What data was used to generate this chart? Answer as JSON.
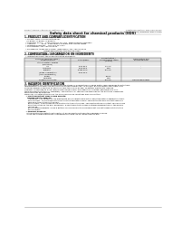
{
  "bg_color": "#ffffff",
  "header_left": "Product Name: Lithium Ion Battery Cell",
  "header_right": "Substance Control: SDS-SDS-00010\nEstablishment / Revision: Dec.7.2018",
  "title": "Safety data sheet for chemical products (SDS)",
  "section1_title": "1. PRODUCT AND COMPANY IDENTIFICATION",
  "section1_lines": [
    "  • Product name: Lithium Ion Battery Cell",
    "  • Product code: Cylindrical-type cell",
    "    (IY-B650J, IY-B660J, IY-B660A)",
    "  • Company name:    Sanyo Electric Co., Ltd.  Mobile Energy Company",
    "  • Address:          2001   Kamitanaka, Sumoto City, Hyogo, Japan",
    "  • Telephone number:   +81-799-26-4111",
    "  • Fax number: +81-799-26-4120",
    "  • Emergency telephone number (Weekdays) +81-799-26-2662",
    "                                  (Night and holiday) +81-799-26-4101"
  ],
  "section2_title": "2. COMPOSITION / INFORMATION ON INGREDIENTS",
  "section2_lines": [
    "  • Substance or preparation: Preparation",
    "  • Information about the chemical nature of product:"
  ],
  "table_headers": [
    "Common chemical name /",
    "CAS number",
    "Concentration /",
    "Classification and"
  ],
  "table_headers2": [
    "Chemical name",
    "",
    "Concentration range",
    "hazard labeling"
  ],
  "table_headers3": [
    "",
    "",
    "(10-60%)",
    ""
  ],
  "table_rows": [
    [
      "Lithium metal complex",
      "-",
      "",
      ""
    ],
    [
      "(LiMnO2O4)",
      "",
      "",
      ""
    ],
    [
      "Iron",
      "7439-89-6",
      "15-25%",
      "-"
    ],
    [
      "Aluminum",
      "7429-90-5",
      "2-5%",
      "-"
    ],
    [
      "Graphite",
      "77782-42-5",
      "10-25%",
      ""
    ],
    [
      "(Made in graphite-1",
      "7782-44-0",
      "",
      ""
    ],
    [
      "(AY8c-as graphite))",
      "",
      "",
      ""
    ],
    [
      "Copper",
      "",
      "5-10%",
      ""
    ],
    [
      "Separator",
      "",
      "1-5%",
      ""
    ],
    [
      "Organic electrolyte",
      "-",
      "10-25%",
      "Inflammable liquid"
    ]
  ],
  "section3_title": "3. HAZARDS IDENTIFICATION",
  "section3_lines": [
    "For this battery cell, chemical materials are stored in a hermetically sealed metal case, designed to withstand",
    "temperatures and pressure encountered during normal use. As a result, during normal use, there is no",
    "physical danger of ignition or explosion and there is no danger of battery electrolyte leakage.",
    "However, if exposed to a fire, added mechanical shock, disintegrated, shorted, abnormal mis-use,",
    "the gas maybe emitted (or operated). The battery cell case will be breached of the particles, hazardous",
    "materials may be released.",
    "Moreover, if heated strongly by the surrounding fire, burst gas may be emitted."
  ],
  "section3_bullet1": "  • Most important hazard and effects:",
  "section3_human_title": "    Human health effects:",
  "section3_human_lines": [
    "      Inhalation:  The release of the electrolyte has an anesthesia action and stimulates a respiratory tract.",
    "      Skin contact:  The release of the electrolyte stimulates a skin. The electrolyte skin contact causes a",
    "      sore and stimulation on the skin.",
    "      Eye contact:  The release of the electrolyte stimulates eyes. The electrolyte eye contact causes a sore",
    "      and stimulation of the eye. Especially, a substance that causes a strong inflammation of the eyes is",
    "      contained.",
    "      Environmental effects: Since a battery cell remains in the environment, do not throw out it into the",
    "      environment."
  ],
  "section3_bullet2": "  • Specific hazards:",
  "section3_specific_lines": [
    "    If the electrolyte contacts with water, it will generate detrimental hydrogen fluoride.",
    "    Since the heated electrolyte is inflammable liquid, do not bring close to fire."
  ]
}
